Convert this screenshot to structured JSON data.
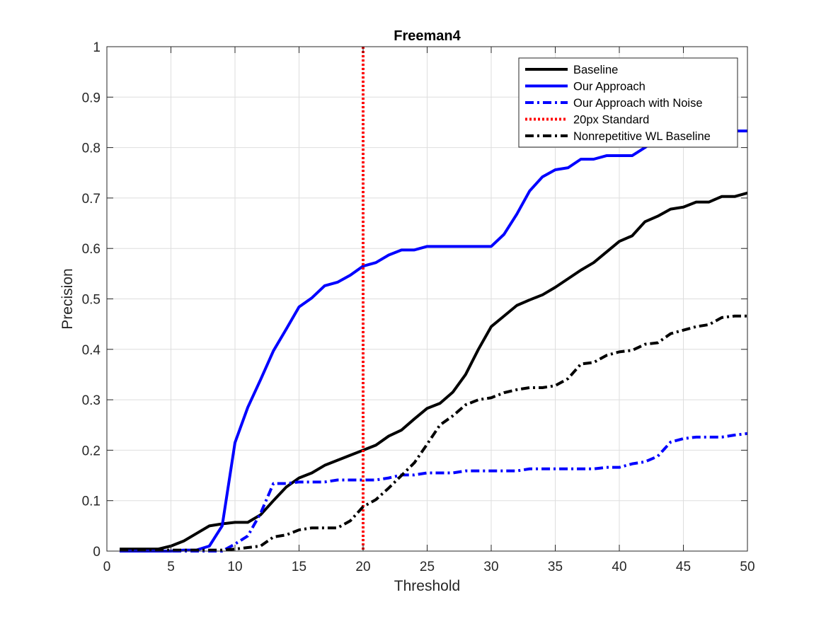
{
  "chart_data": {
    "type": "line",
    "title": "Freeman4",
    "xlabel": "Threshold",
    "ylabel": "Precision",
    "xlim": [
      0,
      50
    ],
    "ylim": [
      0,
      1
    ],
    "xticks": [
      0,
      5,
      10,
      15,
      20,
      25,
      30,
      35,
      40,
      45,
      50
    ],
    "yticks": [
      0,
      0.1,
      0.2,
      0.3,
      0.4,
      0.5,
      0.6,
      0.7,
      0.8,
      0.9,
      1
    ],
    "xtick_labels": [
      "0",
      "5",
      "10",
      "15",
      "20",
      "25",
      "30",
      "35",
      "40",
      "45",
      "50"
    ],
    "ytick_labels": [
      "0",
      "0.1",
      "0.2",
      "0.3",
      "0.4",
      "0.5",
      "0.6",
      "0.7",
      "0.8",
      "0.9",
      "1"
    ],
    "grid": true,
    "legend_position": "top-right",
    "x": [
      1,
      2,
      3,
      4,
      5,
      6,
      7,
      8,
      9,
      10,
      11,
      12,
      13,
      14,
      15,
      16,
      17,
      18,
      19,
      20,
      21,
      22,
      23,
      24,
      25,
      26,
      27,
      28,
      29,
      30,
      31,
      32,
      33,
      34,
      35,
      36,
      37,
      38,
      39,
      40,
      41,
      42,
      43,
      44,
      45,
      46,
      47,
      48,
      49,
      50
    ],
    "series": [
      {
        "name": "Baseline",
        "color": "#000000",
        "style": "solid",
        "values": [
          0.004,
          0.004,
          0.004,
          0.004,
          0.01,
          0.02,
          0.035,
          0.05,
          0.054,
          0.057,
          0.057,
          0.072,
          0.1,
          0.127,
          0.145,
          0.155,
          0.17,
          0.18,
          0.19,
          0.2,
          0.21,
          0.228,
          0.24,
          0.262,
          0.283,
          0.293,
          0.315,
          0.35,
          0.4,
          0.445,
          0.466,
          0.487,
          0.498,
          0.508,
          0.523,
          0.54,
          0.557,
          0.572,
          0.593,
          0.614,
          0.625,
          0.653,
          0.664,
          0.678,
          0.682,
          0.692,
          0.692,
          0.703,
          0.703,
          0.71
        ]
      },
      {
        "name": "Our Approach",
        "color": "#0000ff",
        "style": "solid",
        "values": [
          0,
          0,
          0,
          0,
          0,
          0.002,
          0.002,
          0.01,
          0.05,
          0.215,
          0.285,
          0.34,
          0.397,
          0.44,
          0.484,
          0.502,
          0.526,
          0.533,
          0.547,
          0.565,
          0.572,
          0.587,
          0.597,
          0.597,
          0.604,
          0.604,
          0.604,
          0.604,
          0.604,
          0.604,
          0.628,
          0.668,
          0.714,
          0.742,
          0.756,
          0.76,
          0.777,
          0.777,
          0.784,
          0.784,
          0.784,
          0.8,
          0.818,
          0.825,
          0.825,
          0.833,
          0.833,
          0.833,
          0.833,
          0.833
        ]
      },
      {
        "name": "Our Approach with Noise",
        "color": "#0000ff",
        "style": "dashdot",
        "values": [
          0,
          0,
          0,
          0,
          0,
          0,
          0,
          0,
          0,
          0.014,
          0.03,
          0.075,
          0.134,
          0.134,
          0.137,
          0.137,
          0.137,
          0.141,
          0.141,
          0.141,
          0.141,
          0.145,
          0.151,
          0.151,
          0.155,
          0.155,
          0.155,
          0.159,
          0.159,
          0.159,
          0.159,
          0.159,
          0.163,
          0.163,
          0.163,
          0.163,
          0.163,
          0.163,
          0.166,
          0.166,
          0.173,
          0.177,
          0.188,
          0.216,
          0.223,
          0.226,
          0.226,
          0.226,
          0.23,
          0.233
        ]
      },
      {
        "name": "20px Standard",
        "color": "#ff0000",
        "style": "dotted",
        "vertical_line_x": 20
      },
      {
        "name": "Nonrepetitive WL Baseline",
        "color": "#000000",
        "style": "dashdot",
        "values": [
          0.002,
          0.002,
          0.002,
          0.002,
          0.002,
          0.002,
          0.002,
          0.002,
          0.002,
          0.004,
          0.007,
          0.01,
          0.028,
          0.032,
          0.042,
          0.046,
          0.046,
          0.046,
          0.06,
          0.088,
          0.102,
          0.125,
          0.15,
          0.175,
          0.212,
          0.25,
          0.268,
          0.29,
          0.3,
          0.304,
          0.314,
          0.32,
          0.324,
          0.324,
          0.328,
          0.342,
          0.371,
          0.374,
          0.388,
          0.395,
          0.398,
          0.41,
          0.413,
          0.431,
          0.438,
          0.445,
          0.449,
          0.463,
          0.466,
          0.466
        ]
      }
    ]
  }
}
